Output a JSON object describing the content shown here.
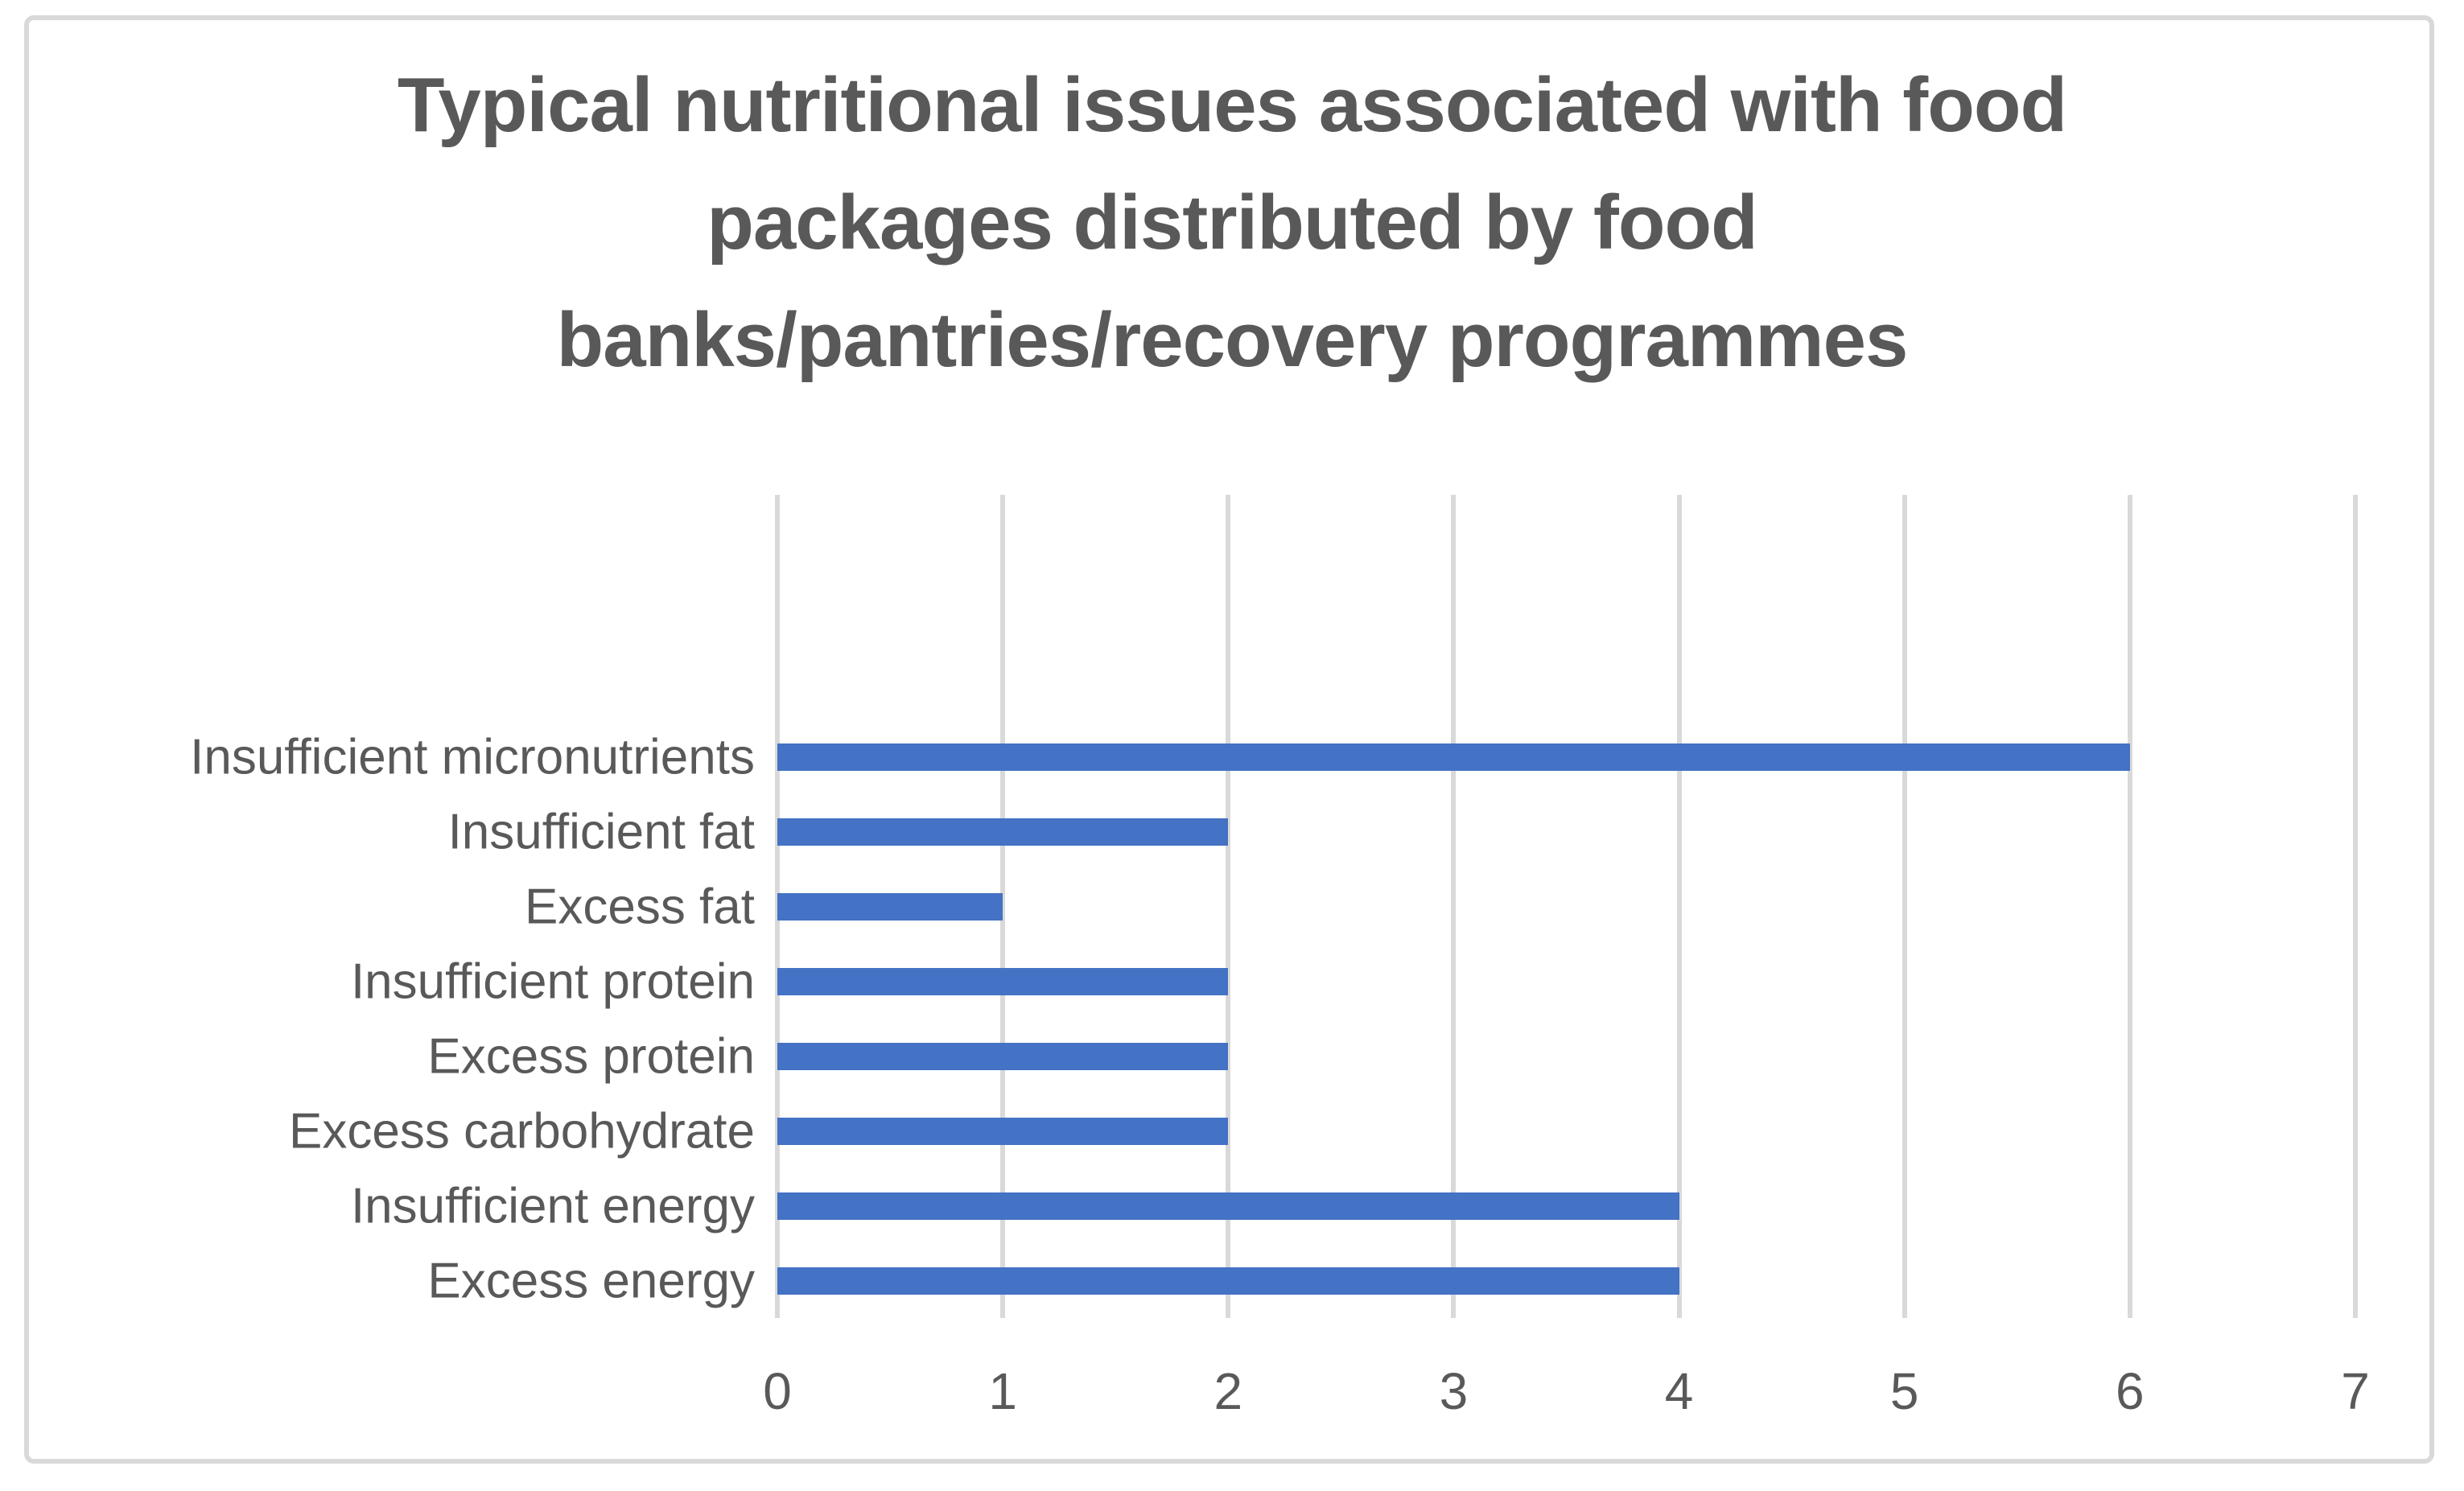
{
  "window": {
    "background": "#ffffff",
    "border_color": "#d9d9d9"
  },
  "chart_data": {
    "type": "bar",
    "orientation": "horizontal",
    "title": "Typical nutritional issues associated with food packages distributed by food banks/pantries/recovery programmes",
    "title_lines": [
      "Typical nutritional issues associated with food",
      "packages distributed by food",
      "banks/pantries/recovery programmes"
    ],
    "categories": [
      "Insufficient micronutrients",
      "Insufficient fat",
      "Excess fat",
      "Insufficient protein",
      "Excess protein",
      "Excess carbohydrate",
      "Insufficient energy",
      "Excess energy"
    ],
    "values": [
      6,
      2,
      1,
      2,
      2,
      2,
      4,
      4
    ],
    "x_ticks": [
      "0",
      "1",
      "2",
      "3",
      "4",
      "5",
      "6",
      "7"
    ],
    "xlim": [
      0,
      7
    ],
    "xlabel": "",
    "ylabel": "",
    "grid": "vertical-only",
    "legend": "none",
    "bar_color": "#4472c4",
    "gridline_color": "#d9d9d9",
    "text_color": "#595959"
  }
}
